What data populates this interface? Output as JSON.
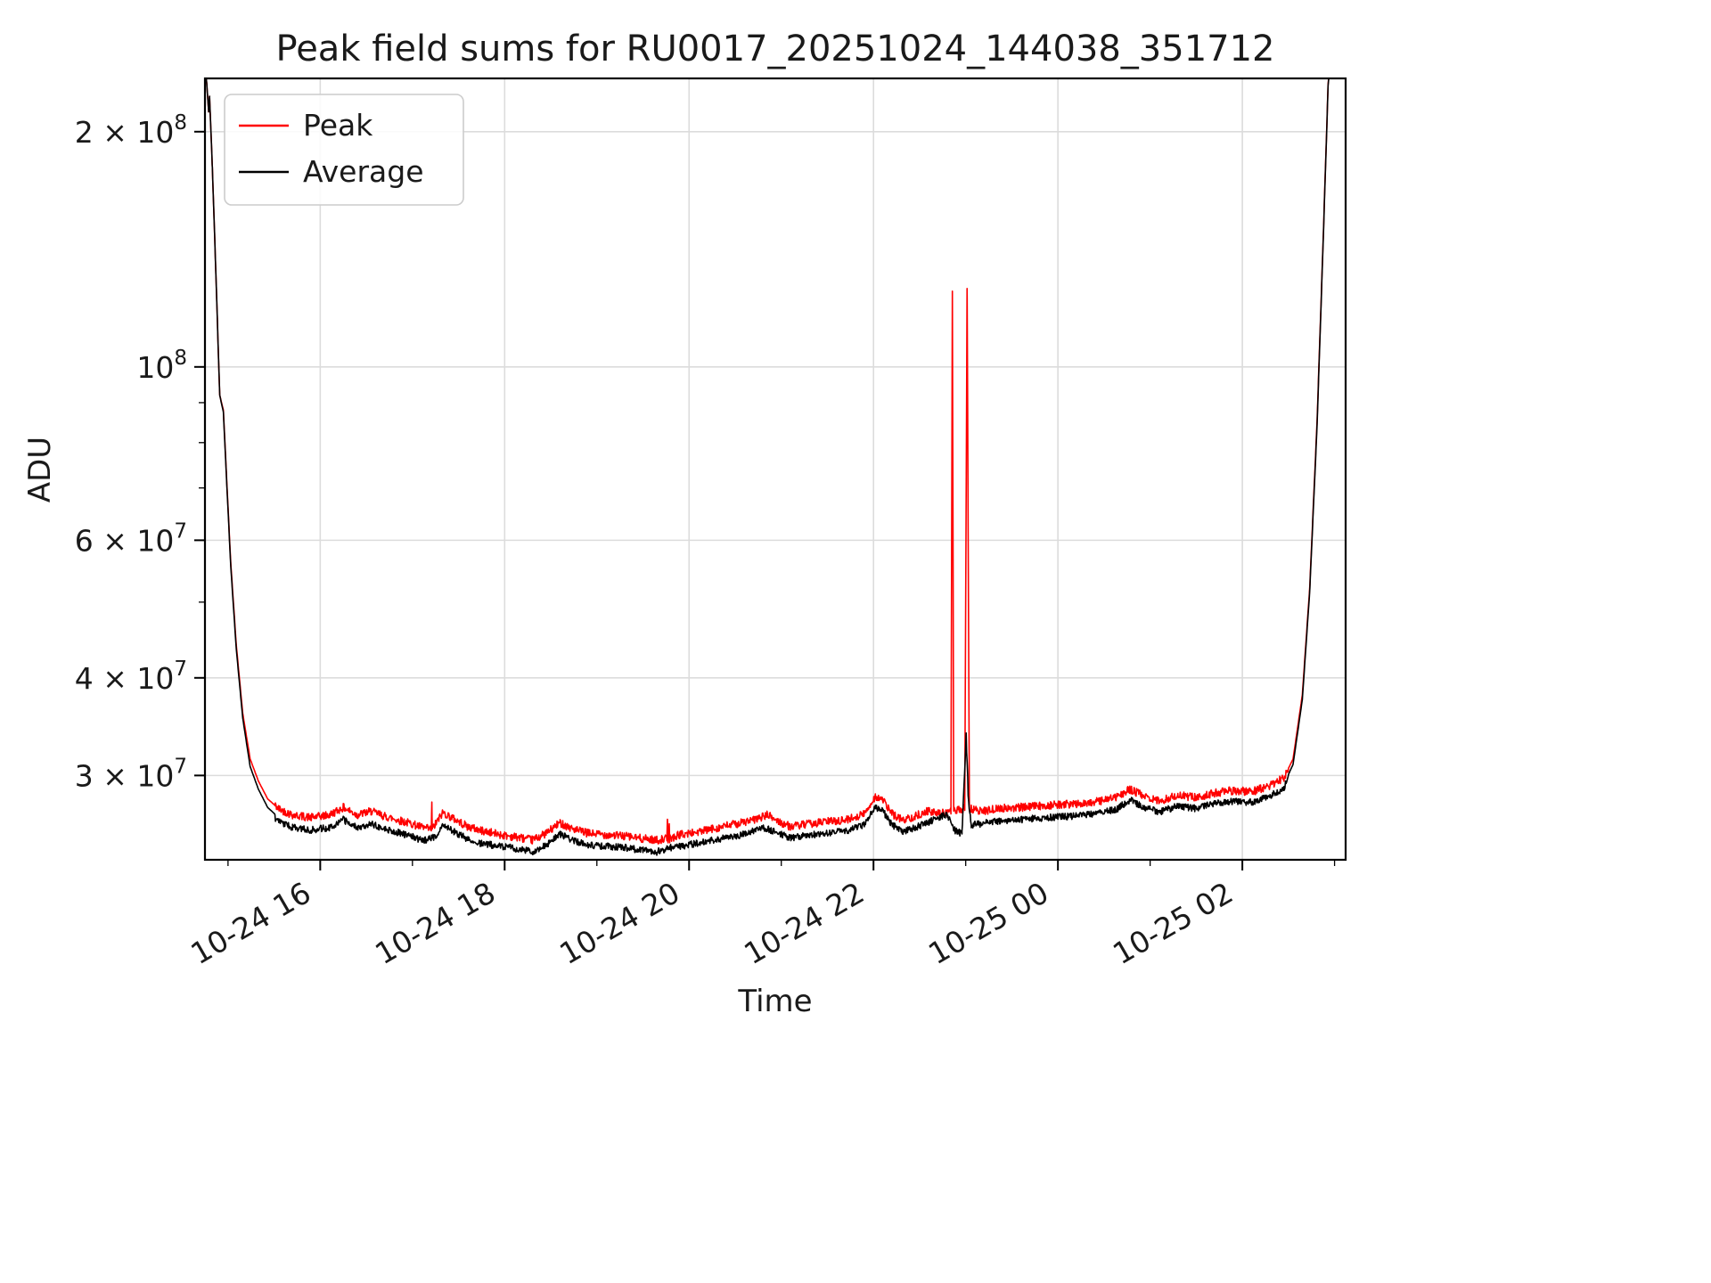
{
  "chart_data": {
    "type": "line",
    "title": "Peak field sums for RU0017_20251024_144038_351712",
    "xlabel": "Time",
    "ylabel": "ADU",
    "yscale": "log",
    "grid": true,
    "grid_color": "#dcdcdc",
    "legend_position": "upper-left",
    "ylim": [
      23400000,
      234000000
    ],
    "xlim_hours": [
      14.75,
      27.12
    ],
    "x_ticks": [
      {
        "hours": 16,
        "label": "10-24 16"
      },
      {
        "hours": 18,
        "label": "10-24 18"
      },
      {
        "hours": 20,
        "label": "10-24 20"
      },
      {
        "hours": 22,
        "label": "10-24 22"
      },
      {
        "hours": 24,
        "label": "10-25 00"
      },
      {
        "hours": 26,
        "label": "10-25 02"
      }
    ],
    "x_minor_hours": [
      15,
      17,
      19,
      21,
      23,
      25,
      27
    ],
    "y_ticks": [
      {
        "value": 200000000,
        "base": "2 × 10",
        "exp": "8"
      },
      {
        "value": 100000000,
        "base": "10",
        "exp": "8"
      },
      {
        "value": 60000000,
        "base": "6 × 10",
        "exp": "7"
      },
      {
        "value": 40000000,
        "base": "4 × 10",
        "exp": "7"
      },
      {
        "value": 30000000,
        "base": "3 × 10",
        "exp": "7"
      }
    ],
    "y_minor_values": [
      50000000,
      70000000,
      80000000,
      90000000
    ],
    "legend": [
      {
        "name": "Peak",
        "color": "#ff0000"
      },
      {
        "name": "Average",
        "color": "#000000"
      }
    ],
    "series": [
      {
        "id": "peak-line",
        "name": "Peak",
        "color": "#ff0000",
        "seed": 42,
        "noise": {
          "from": 15.5,
          "to": 26.5,
          "amp": 0.012,
          "mode": "sym",
          "max_value": 33000000
        },
        "keypoints": [
          [
            14.75,
            245000000.0
          ],
          [
            14.77,
            230000000.0
          ],
          [
            14.79,
            212000000.0
          ],
          [
            14.8,
            222000000.0
          ],
          [
            14.83,
            180000000.0
          ],
          [
            14.87,
            130000000.0
          ],
          [
            14.91,
            92000000.0
          ],
          [
            14.95,
            88000000.0
          ],
          [
            14.98,
            74000000.0
          ],
          [
            15.03,
            56000000.0
          ],
          [
            15.09,
            44000000.0
          ],
          [
            15.16,
            36000000.0
          ],
          [
            15.24,
            31500000.0
          ],
          [
            15.33,
            29500000.0
          ],
          [
            15.43,
            28000000.0
          ],
          [
            15.55,
            27200000.0
          ],
          [
            15.7,
            26700000.0
          ],
          [
            15.9,
            26500000.0
          ],
          [
            16.1,
            26700000.0
          ],
          [
            16.25,
            27300000.0
          ],
          [
            16.4,
            26700000.0
          ],
          [
            16.55,
            27000000.0
          ],
          [
            16.7,
            26600000.0
          ],
          [
            16.85,
            26300000.0
          ],
          [
            17.0,
            26000000.0
          ],
          [
            17.12,
            25700000.0
          ],
          [
            17.205,
            25600000.0
          ],
          [
            17.21,
            27800000.0
          ],
          [
            17.215,
            25600000.0
          ],
          [
            17.25,
            26000000.0
          ],
          [
            17.33,
            26900000.0
          ],
          [
            17.45,
            26400000.0
          ],
          [
            17.6,
            25800000.0
          ],
          [
            17.75,
            25500000.0
          ],
          [
            17.95,
            25200000.0
          ],
          [
            18.15,
            25000000.0
          ],
          [
            18.3,
            24800000.0
          ],
          [
            18.45,
            25300000.0
          ],
          [
            18.6,
            26100000.0
          ],
          [
            18.75,
            25600000.0
          ],
          [
            18.9,
            25300000.0
          ],
          [
            19.1,
            25200000.0
          ],
          [
            19.3,
            25100000.0
          ],
          [
            19.5,
            24900000.0
          ],
          [
            19.65,
            24800000.0
          ],
          [
            19.76,
            24900000.0
          ],
          [
            19.765,
            26300000.0
          ],
          [
            19.77,
            24900000.0
          ],
          [
            19.78,
            24900000.0
          ],
          [
            19.785,
            26200000.0
          ],
          [
            19.79,
            24900000.0
          ],
          [
            19.9,
            25200000.0
          ],
          [
            20.1,
            25400000.0
          ],
          [
            20.3,
            25700000.0
          ],
          [
            20.5,
            26000000.0
          ],
          [
            20.7,
            26300000.0
          ],
          [
            20.85,
            26700000.0
          ],
          [
            20.97,
            26200000.0
          ],
          [
            21.1,
            25800000.0
          ],
          [
            21.3,
            26000000.0
          ],
          [
            21.5,
            26200000.0
          ],
          [
            21.7,
            26300000.0
          ],
          [
            21.9,
            26800000.0
          ],
          [
            22.02,
            28200000.0
          ],
          [
            22.1,
            27900000.0
          ],
          [
            22.2,
            26800000.0
          ],
          [
            22.32,
            26300000.0
          ],
          [
            22.45,
            26600000.0
          ],
          [
            22.58,
            27000000.0
          ],
          [
            22.72,
            26800000.0
          ],
          [
            22.84,
            27000000.0
          ],
          [
            22.855,
            125000000.0
          ],
          [
            22.87,
            27000000.0
          ],
          [
            22.99,
            27200000.0
          ],
          [
            23.015,
            126000000.0
          ],
          [
            23.04,
            27200000.0
          ],
          [
            23.18,
            27000000.0
          ],
          [
            23.35,
            27200000.0
          ],
          [
            23.55,
            27300000.0
          ],
          [
            23.75,
            27400000.0
          ],
          [
            23.95,
            27500000.0
          ],
          [
            24.2,
            27600000.0
          ],
          [
            24.45,
            27800000.0
          ],
          [
            24.65,
            28200000.0
          ],
          [
            24.78,
            28800000.0
          ],
          [
            24.92,
            28300000.0
          ],
          [
            25.1,
            27800000.0
          ],
          [
            25.3,
            28300000.0
          ],
          [
            25.5,
            28100000.0
          ],
          [
            25.7,
            28500000.0
          ],
          [
            25.9,
            28700000.0
          ],
          [
            26.1,
            28600000.0
          ],
          [
            26.3,
            29100000.0
          ],
          [
            26.45,
            29800000.0
          ],
          [
            26.55,
            31500000.0
          ],
          [
            26.65,
            38000000.0
          ],
          [
            26.73,
            52000000.0
          ],
          [
            26.81,
            85000000.0
          ],
          [
            26.88,
            150000000.0
          ],
          [
            26.93,
            230000000.0
          ],
          [
            26.97,
            260000000.0
          ],
          [
            27.12,
            280000000.0
          ]
        ]
      },
      {
        "id": "average-line",
        "name": "Average",
        "color": "#000000",
        "seed": 7,
        "noise": {
          "from": 15.5,
          "to": 26.5,
          "amp": 0.02,
          "mode": "down",
          "max_value": 33000000
        },
        "keypoints": [
          [
            14.75,
            245000000.0
          ],
          [
            14.77,
            230000000.0
          ],
          [
            14.79,
            212000000.0
          ],
          [
            14.8,
            222000000.0
          ],
          [
            14.83,
            180000000.0
          ],
          [
            14.87,
            130000000.0
          ],
          [
            14.91,
            92000000.0
          ],
          [
            14.95,
            87500000.0
          ],
          [
            14.98,
            73500000.0
          ],
          [
            15.03,
            55500000.0
          ],
          [
            15.09,
            43500000.0
          ],
          [
            15.16,
            35500000.0
          ],
          [
            15.24,
            30800000.0
          ],
          [
            15.33,
            28800000.0
          ],
          [
            15.43,
            27300000.0
          ],
          [
            15.55,
            26500000.0
          ],
          [
            15.7,
            26000000.0
          ],
          [
            15.9,
            25800000.0
          ],
          [
            16.1,
            26000000.0
          ],
          [
            16.25,
            26600000.0
          ],
          [
            16.4,
            26000000.0
          ],
          [
            16.55,
            26300000.0
          ],
          [
            16.7,
            25900000.0
          ],
          [
            16.85,
            25600000.0
          ],
          [
            17.0,
            25300000.0
          ],
          [
            17.12,
            25000000.0
          ],
          [
            17.25,
            25300000.0
          ],
          [
            17.33,
            26200000.0
          ],
          [
            17.45,
            25700000.0
          ],
          [
            17.6,
            25100000.0
          ],
          [
            17.75,
            24800000.0
          ],
          [
            17.95,
            24600000.0
          ],
          [
            18.15,
            24400000.0
          ],
          [
            18.3,
            24200000.0
          ],
          [
            18.45,
            24700000.0
          ],
          [
            18.6,
            25500000.0
          ],
          [
            18.75,
            25000000.0
          ],
          [
            18.9,
            24700000.0
          ],
          [
            19.1,
            24600000.0
          ],
          [
            19.3,
            24500000.0
          ],
          [
            19.5,
            24300000.0
          ],
          [
            19.65,
            24200000.0
          ],
          [
            19.8,
            24500000.0
          ],
          [
            20.0,
            24700000.0
          ],
          [
            20.2,
            25000000.0
          ],
          [
            20.4,
            25200000.0
          ],
          [
            20.6,
            25500000.0
          ],
          [
            20.8,
            26000000.0
          ],
          [
            20.97,
            25600000.0
          ],
          [
            21.1,
            25200000.0
          ],
          [
            21.3,
            25400000.0
          ],
          [
            21.5,
            25600000.0
          ],
          [
            21.7,
            25700000.0
          ],
          [
            21.9,
            26200000.0
          ],
          [
            22.02,
            27600000.0
          ],
          [
            22.1,
            27300000.0
          ],
          [
            22.2,
            26200000.0
          ],
          [
            22.32,
            25700000.0
          ],
          [
            22.45,
            26000000.0
          ],
          [
            22.6,
            26400000.0
          ],
          [
            22.72,
            26800000.0
          ],
          [
            22.8,
            27000000.0
          ],
          [
            22.88,
            25800000.0
          ],
          [
            22.96,
            25500000.0
          ],
          [
            23.005,
            34000000.0
          ],
          [
            23.03,
            28000000.0
          ],
          [
            23.06,
            26200000.0
          ],
          [
            23.18,
            26300000.0
          ],
          [
            23.35,
            26500000.0
          ],
          [
            23.55,
            26600000.0
          ],
          [
            23.75,
            26700000.0
          ],
          [
            23.95,
            26800000.0
          ],
          [
            24.2,
            26900000.0
          ],
          [
            24.45,
            27100000.0
          ],
          [
            24.65,
            27500000.0
          ],
          [
            24.78,
            28200000.0
          ],
          [
            24.92,
            27600000.0
          ],
          [
            25.1,
            27200000.0
          ],
          [
            25.3,
            27700000.0
          ],
          [
            25.5,
            27500000.0
          ],
          [
            25.7,
            27900000.0
          ],
          [
            25.9,
            28100000.0
          ],
          [
            26.1,
            28000000.0
          ],
          [
            26.3,
            28500000.0
          ],
          [
            26.45,
            29200000.0
          ],
          [
            26.55,
            31000000.0
          ],
          [
            26.65,
            37500000.0
          ],
          [
            26.73,
            51500000.0
          ],
          [
            26.81,
            84000000.0
          ],
          [
            26.88,
            149000000.0
          ],
          [
            26.93,
            229000000.0
          ],
          [
            26.97,
            260000000.0
          ],
          [
            27.12,
            280000000.0
          ]
        ]
      }
    ]
  }
}
